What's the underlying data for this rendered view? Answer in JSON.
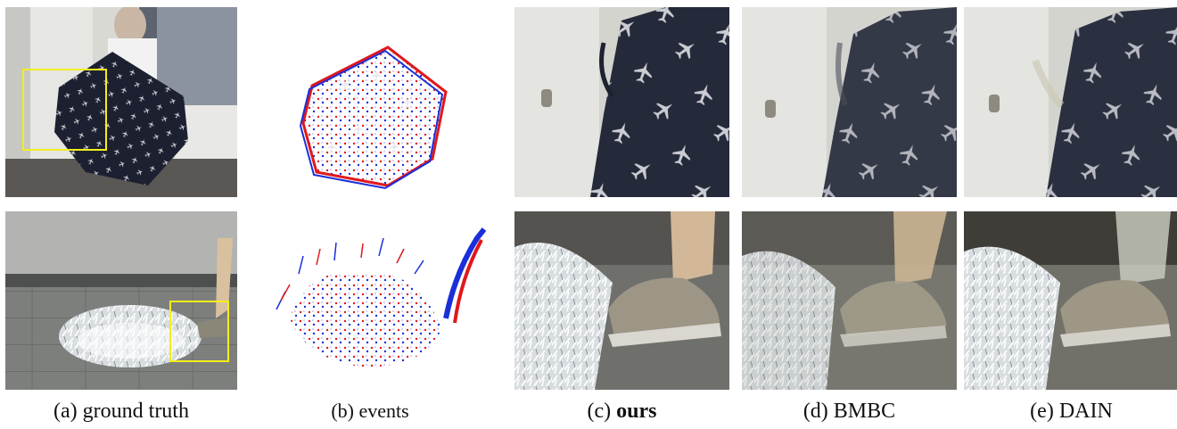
{
  "figure": {
    "columns": [
      {
        "id": "a",
        "prefix": "(a) ",
        "label": "ground truth",
        "bold": false
      },
      {
        "id": "b",
        "prefix": "(b) ",
        "label": "events",
        "bold": false
      },
      {
        "id": "c",
        "prefix": "(c) ",
        "label": "ours",
        "bold": true
      },
      {
        "id": "d",
        "prefix": "(d) ",
        "label": "BMBC",
        "bold": false
      },
      {
        "id": "e",
        "prefix": "(e) ",
        "label": "DAIN",
        "bold": false
      }
    ],
    "rows": [
      "umbrella",
      "water-splash"
    ],
    "highlight_color": "#f3ee1c",
    "event_colors": {
      "positive": "#e0181c",
      "negative": "#1a2fd8"
    }
  }
}
